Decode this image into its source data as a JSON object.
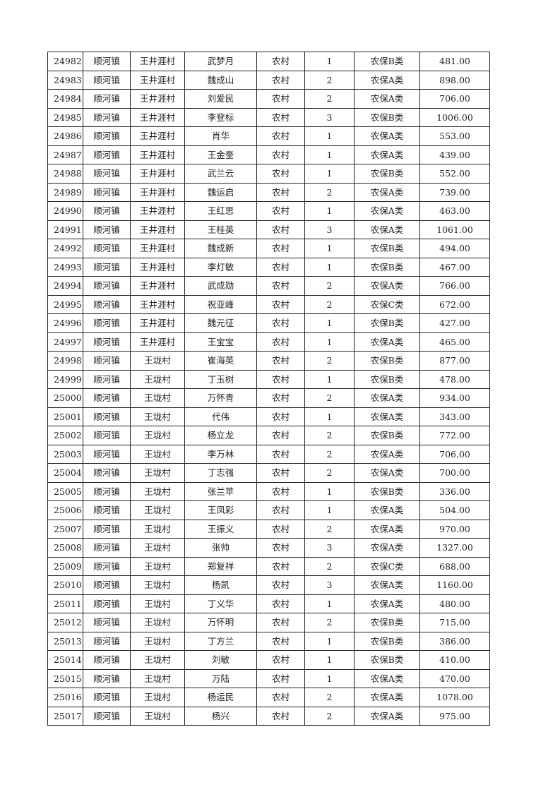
{
  "table": {
    "rows": [
      [
        "24982",
        "顺河镇",
        "王井涯村",
        "武梦月",
        "农村",
        "1",
        "农保B类",
        "481.00"
      ],
      [
        "24983",
        "顺河镇",
        "王井涯村",
        "魏成山",
        "农村",
        "2",
        "农保A类",
        "898.00"
      ],
      [
        "24984",
        "顺河镇",
        "王井涯村",
        "刘爱民",
        "农村",
        "2",
        "农保A类",
        "706.00"
      ],
      [
        "24985",
        "顺河镇",
        "王井涯村",
        "李登标",
        "农村",
        "3",
        "农保B类",
        "1006.00"
      ],
      [
        "24986",
        "顺河镇",
        "王井涯村",
        "肖华",
        "农村",
        "1",
        "农保A类",
        "553.00"
      ],
      [
        "24987",
        "顺河镇",
        "王井涯村",
        "王金奎",
        "农村",
        "1",
        "农保A类",
        "439.00"
      ],
      [
        "24988",
        "顺河镇",
        "王井涯村",
        "武兰云",
        "农村",
        "1",
        "农保B类",
        "552.00"
      ],
      [
        "24989",
        "顺河镇",
        "王井涯村",
        "魏运启",
        "农村",
        "2",
        "农保A类",
        "739.00"
      ],
      [
        "24990",
        "顺河镇",
        "王井涯村",
        "王红思",
        "农村",
        "1",
        "农保A类",
        "463.00"
      ],
      [
        "24991",
        "顺河镇",
        "王井涯村",
        "王桂英",
        "农村",
        "3",
        "农保A类",
        "1061.00"
      ],
      [
        "24992",
        "顺河镇",
        "王井涯村",
        "魏成新",
        "农村",
        "1",
        "农保B类",
        "494.00"
      ],
      [
        "24993",
        "顺河镇",
        "王井涯村",
        "李灯敏",
        "农村",
        "1",
        "农保B类",
        "467.00"
      ],
      [
        "24994",
        "顺河镇",
        "王井涯村",
        "武成勋",
        "农村",
        "2",
        "农保A类",
        "766.00"
      ],
      [
        "24995",
        "顺河镇",
        "王井涯村",
        "祝亚峰",
        "农村",
        "2",
        "农保C类",
        "672.00"
      ],
      [
        "24996",
        "顺河镇",
        "王井涯村",
        "魏元征",
        "农村",
        "1",
        "农保B类",
        "427.00"
      ],
      [
        "24997",
        "顺河镇",
        "王井涯村",
        "王宝宝",
        "农村",
        "1",
        "农保A类",
        "465.00"
      ],
      [
        "24998",
        "顺河镇",
        "王垅村",
        "崔海英",
        "农村",
        "2",
        "农保B类",
        "877.00"
      ],
      [
        "24999",
        "顺河镇",
        "王垅村",
        "丁玉树",
        "农村",
        "1",
        "农保B类",
        "478.00"
      ],
      [
        "25000",
        "顺河镇",
        "王垅村",
        "万怀青",
        "农村",
        "2",
        "农保A类",
        "934.00"
      ],
      [
        "25001",
        "顺河镇",
        "王垅村",
        "代伟",
        "农村",
        "1",
        "农保A类",
        "343.00"
      ],
      [
        "25002",
        "顺河镇",
        "王垅村",
        "杨立龙",
        "农村",
        "2",
        "农保B类",
        "772.00"
      ],
      [
        "25003",
        "顺河镇",
        "王垅村",
        "李万林",
        "农村",
        "2",
        "农保A类",
        "706.00"
      ],
      [
        "25004",
        "顺河镇",
        "王垅村",
        "丁志强",
        "农村",
        "2",
        "农保A类",
        "700.00"
      ],
      [
        "25005",
        "顺河镇",
        "王垅村",
        "张兰苹",
        "农村",
        "1",
        "农保B类",
        "336.00"
      ],
      [
        "25006",
        "顺河镇",
        "王垅村",
        "王凤彩",
        "农村",
        "1",
        "农保A类",
        "504.00"
      ],
      [
        "25007",
        "顺河镇",
        "王垅村",
        "王振义",
        "农村",
        "2",
        "农保A类",
        "970.00"
      ],
      [
        "25008",
        "顺河镇",
        "王垅村",
        "张帅",
        "农村",
        "3",
        "农保A类",
        "1327.00"
      ],
      [
        "25009",
        "顺河镇",
        "王垅村",
        "郑复祥",
        "农村",
        "2",
        "农保C类",
        "688.00"
      ],
      [
        "25010",
        "顺河镇",
        "王垅村",
        "杨凯",
        "农村",
        "3",
        "农保A类",
        "1160.00"
      ],
      [
        "25011",
        "顺河镇",
        "王垅村",
        "丁义华",
        "农村",
        "1",
        "农保A类",
        "480.00"
      ],
      [
        "25012",
        "顺河镇",
        "王垅村",
        "万怀明",
        "农村",
        "2",
        "农保B类",
        "715.00"
      ],
      [
        "25013",
        "顺河镇",
        "王垅村",
        "丁方兰",
        "农村",
        "1",
        "农保B类",
        "386.00"
      ],
      [
        "25014",
        "顺河镇",
        "王垅村",
        "刘敏",
        "农村",
        "1",
        "农保B类",
        "410.00"
      ],
      [
        "25015",
        "顺河镇",
        "王垅村",
        "万陆",
        "农村",
        "1",
        "农保A类",
        "470.00"
      ],
      [
        "25016",
        "顺河镇",
        "王垅村",
        "杨运民",
        "农村",
        "2",
        "农保A类",
        "1078.00"
      ],
      [
        "25017",
        "顺河镇",
        "王垅村",
        "杨兴",
        "农村",
        "2",
        "农保A类",
        "975.00"
      ]
    ]
  }
}
